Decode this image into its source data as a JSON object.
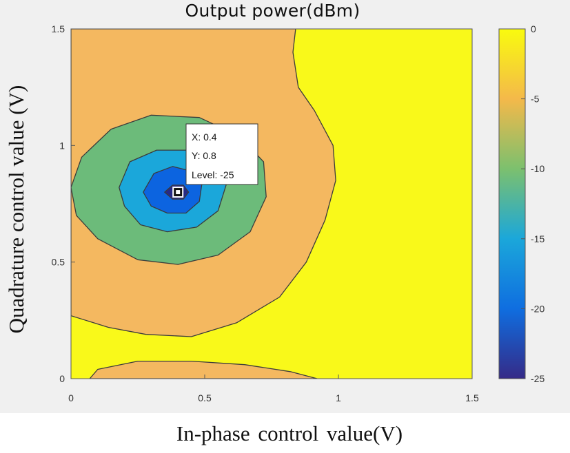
{
  "chart_data": {
    "type": "contour",
    "title": "Output power(dBm)",
    "xlabel": "In-phase  control  value(V)",
    "ylabel": "Quadrature control value (V)",
    "xlim": [
      0,
      1.5
    ],
    "ylim": [
      0,
      1.5
    ],
    "xticks": [
      "0",
      "0.5",
      "1",
      "1.5"
    ],
    "yticks": [
      "0",
      "0.5",
      "1",
      "1.5"
    ],
    "colorbar": {
      "range": [
        -25,
        0
      ],
      "ticks": [
        "0",
        "-5",
        "-10",
        "-15",
        "-20",
        "-25"
      ],
      "colormap": "parula"
    },
    "minimum": {
      "x": 0.4,
      "y": 0.8,
      "level": -25
    },
    "levels": [
      {
        "level": 0,
        "color": "#f9f91a"
      },
      {
        "level": -5,
        "color": "#f4b860"
      },
      {
        "level": -10,
        "color": "#6cbb7a"
      },
      {
        "level": -15,
        "color": "#1ba7da"
      },
      {
        "level": -20,
        "color": "#0c64e0"
      },
      {
        "level": -25,
        "color": "#262a86"
      }
    ],
    "contours": [
      {
        "level": -5,
        "polygon": [
          [
            0,
            1.5
          ],
          [
            0.84,
            1.5
          ],
          [
            0.83,
            1.4
          ],
          [
            0.85,
            1.25
          ],
          [
            0.91,
            1.15
          ],
          [
            0.98,
            1.0
          ],
          [
            0.99,
            0.85
          ],
          [
            0.95,
            0.68
          ],
          [
            0.88,
            0.5
          ],
          [
            0.78,
            0.35
          ],
          [
            0.62,
            0.24
          ],
          [
            0.45,
            0.18
          ],
          [
            0.28,
            0.19
          ],
          [
            0.14,
            0.22
          ],
          [
            0,
            0.27
          ]
        ]
      },
      {
        "level": -5,
        "polygon": [
          [
            0.07,
            0
          ],
          [
            0.1,
            0.04
          ],
          [
            0.25,
            0.075
          ],
          [
            0.45,
            0.075
          ],
          [
            0.65,
            0.06
          ],
          [
            0.82,
            0.03
          ],
          [
            0.92,
            0
          ]
        ]
      },
      {
        "level": -10,
        "polygon": [
          [
            0.0,
            0.82
          ],
          [
            0.04,
            0.95
          ],
          [
            0.15,
            1.07
          ],
          [
            0.3,
            1.13
          ],
          [
            0.48,
            1.12
          ],
          [
            0.63,
            1.04
          ],
          [
            0.72,
            0.93
          ],
          [
            0.73,
            0.78
          ],
          [
            0.67,
            0.63
          ],
          [
            0.55,
            0.53
          ],
          [
            0.4,
            0.49
          ],
          [
            0.25,
            0.51
          ],
          [
            0.1,
            0.6
          ],
          [
            0.02,
            0.7
          ]
        ]
      },
      {
        "level": -15,
        "polygon": [
          [
            0.18,
            0.82
          ],
          [
            0.22,
            0.93
          ],
          [
            0.32,
            0.98
          ],
          [
            0.45,
            0.98
          ],
          [
            0.54,
            0.93
          ],
          [
            0.58,
            0.83
          ],
          [
            0.55,
            0.72
          ],
          [
            0.47,
            0.65
          ],
          [
            0.36,
            0.63
          ],
          [
            0.26,
            0.66
          ],
          [
            0.2,
            0.74
          ]
        ]
      },
      {
        "level": -20,
        "polygon": [
          [
            0.27,
            0.8
          ],
          [
            0.31,
            0.88
          ],
          [
            0.38,
            0.91
          ],
          [
            0.45,
            0.89
          ],
          [
            0.49,
            0.84
          ],
          [
            0.48,
            0.76
          ],
          [
            0.43,
            0.71
          ],
          [
            0.36,
            0.71
          ],
          [
            0.3,
            0.74
          ]
        ]
      },
      {
        "level": -25,
        "polygon": [
          [
            0.35,
            0.8
          ],
          [
            0.38,
            0.83
          ],
          [
            0.42,
            0.83
          ],
          [
            0.44,
            0.8
          ],
          [
            0.42,
            0.77
          ],
          [
            0.38,
            0.77
          ]
        ]
      }
    ],
    "datatip": {
      "x_text": "X: 0.4",
      "y_text": "Y: 0.8",
      "level_text": "Level: -25"
    }
  }
}
